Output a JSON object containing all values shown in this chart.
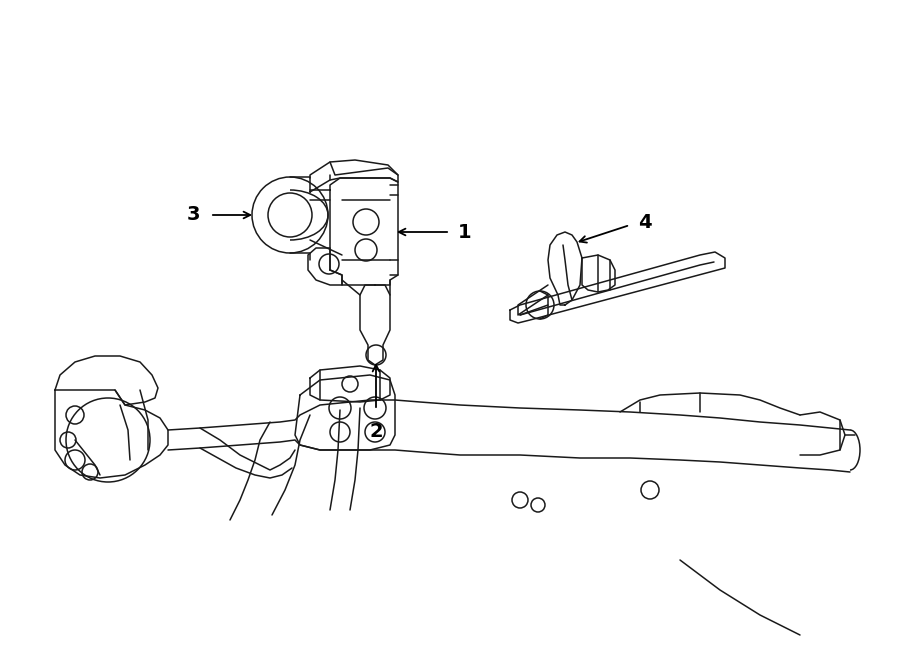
{
  "bg_color": "#ffffff",
  "line_color": "#1a1a1a",
  "line_width": 1.1,
  "figsize": [
    9.0,
    6.61
  ],
  "dpi": 100,
  "border_color": "#cccccc"
}
